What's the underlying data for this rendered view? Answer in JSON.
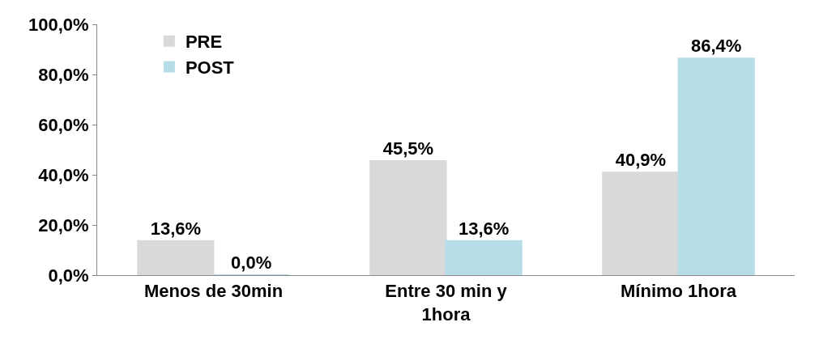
{
  "chart_data": {
    "type": "bar",
    "categories": [
      "Menos de 30min",
      "Entre 30 min y 1hora",
      "Mínimo 1hora"
    ],
    "series": [
      {
        "name": "PRE",
        "color": "#d9d9d9",
        "values": [
          13.6,
          45.5,
          40.9
        ],
        "value_labels": [
          "13,6%",
          "45,5%",
          "40,9%"
        ]
      },
      {
        "name": "POST",
        "color": "#b7dde8",
        "values": [
          0,
          13.6,
          86.4
        ],
        "value_labels": [
          "0,0%",
          "13,6%",
          "86,4%"
        ]
      }
    ],
    "ylim": [
      0,
      100
    ],
    "yticks": [
      {
        "value": 0,
        "label": "0,0%"
      },
      {
        "value": 20,
        "label": "20,0%"
      },
      {
        "value": 40,
        "label": "40,0%"
      },
      {
        "value": 60,
        "label": "60,0%"
      },
      {
        "value": 80,
        "label": "80,0%"
      },
      {
        "value": 100,
        "label": "100,0%"
      }
    ],
    "legend": "top left"
  }
}
